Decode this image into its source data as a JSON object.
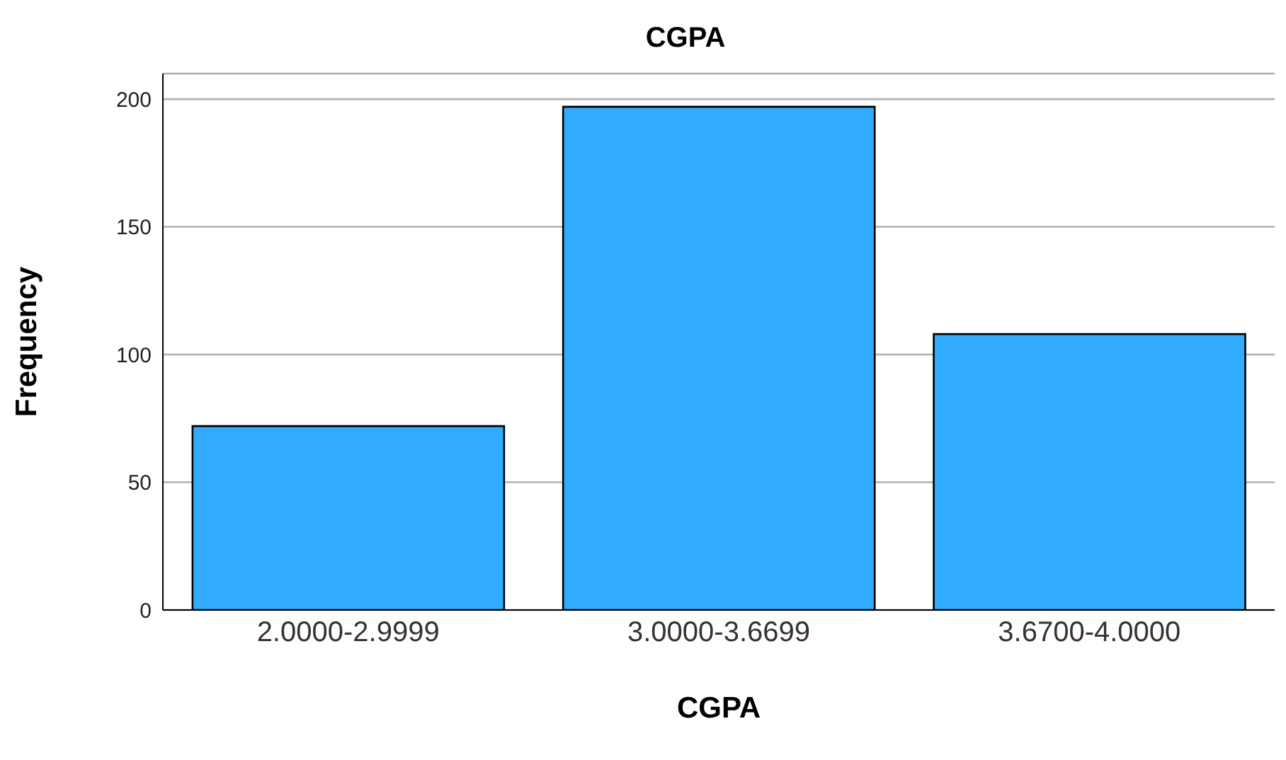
{
  "chart_data": {
    "type": "bar",
    "title": "CGPA",
    "xlabel": "CGPA",
    "ylabel": "Frequency",
    "categories": [
      "2.0000-2.9999",
      "3.0000-3.6699",
      "3.6700-4.0000"
    ],
    "values": [
      72,
      197,
      108
    ],
    "color": "#30abff",
    "ylim": [
      0,
      210
    ],
    "yticks": [
      0,
      50,
      100,
      150,
      200
    ],
    "grid": "y"
  }
}
